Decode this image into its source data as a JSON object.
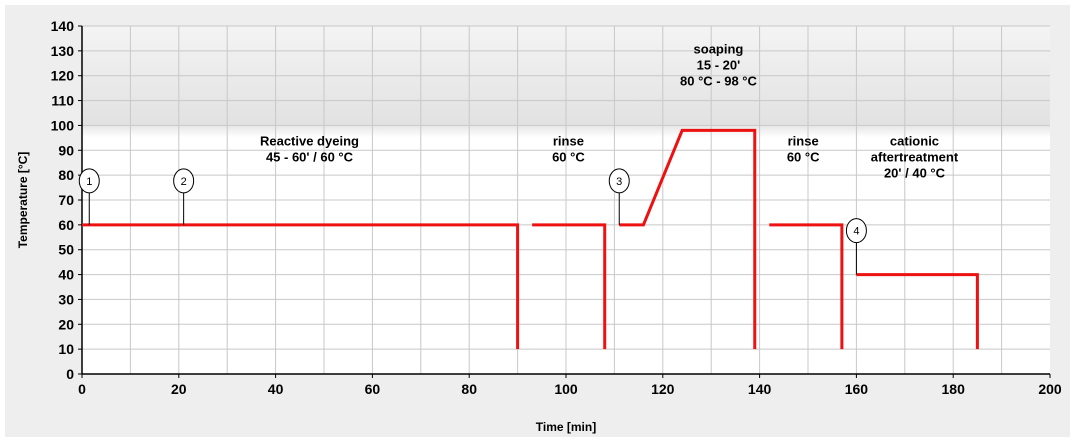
{
  "chart_data": {
    "type": "line",
    "title": "",
    "xlabel": "Time [min]",
    "ylabel": "Temperature [°C]",
    "xlim": [
      0,
      200
    ],
    "ylim": [
      0,
      140
    ],
    "xticks": [
      0,
      20,
      40,
      60,
      80,
      100,
      120,
      140,
      160,
      180,
      200
    ],
    "yticks": [
      0,
      10,
      20,
      30,
      40,
      50,
      60,
      70,
      80,
      90,
      100,
      110,
      120,
      130,
      140
    ],
    "grid": true,
    "series_color": "#ee1111",
    "segments": [
      {
        "x": [
          0,
          90,
          90
        ],
        "y": [
          60,
          60,
          10
        ]
      },
      {
        "x": [
          93,
          108,
          108
        ],
        "y": [
          60,
          60,
          10
        ]
      },
      {
        "x": [
          111,
          116,
          124,
          139,
          139
        ],
        "y": [
          60,
          60,
          98,
          98,
          10
        ]
      },
      {
        "x": [
          142,
          157,
          157
        ],
        "y": [
          60,
          60,
          10
        ]
      },
      {
        "x": [
          160,
          185,
          185
        ],
        "y": [
          40,
          40,
          10
        ]
      }
    ],
    "markers": [
      {
        "label": "1",
        "x": 1.5,
        "y": 60
      },
      {
        "label": "2",
        "x": 21,
        "y": 60
      },
      {
        "label": "3",
        "x": 111,
        "y": 60
      },
      {
        "label": "4",
        "x": 160,
        "y": 40
      }
    ],
    "annotations": [
      {
        "lines": [
          "Reactive dyeing",
          "45 - 60' / 60 °C"
        ],
        "x": 47,
        "y": 92
      },
      {
        "lines": [
          "rinse",
          "60 °C"
        ],
        "x": 100.5,
        "y": 92
      },
      {
        "lines": [
          "soaping",
          "15 - 20'",
          "80 °C - 98 °C"
        ],
        "x": 131.5,
        "y": 129
      },
      {
        "lines": [
          "rinse",
          "60 °C"
        ],
        "x": 149,
        "y": 92
      },
      {
        "lines": [
          "cationic",
          "aftertreatment",
          "20' / 40 °C"
        ],
        "x": 172,
        "y": 92
      }
    ]
  }
}
